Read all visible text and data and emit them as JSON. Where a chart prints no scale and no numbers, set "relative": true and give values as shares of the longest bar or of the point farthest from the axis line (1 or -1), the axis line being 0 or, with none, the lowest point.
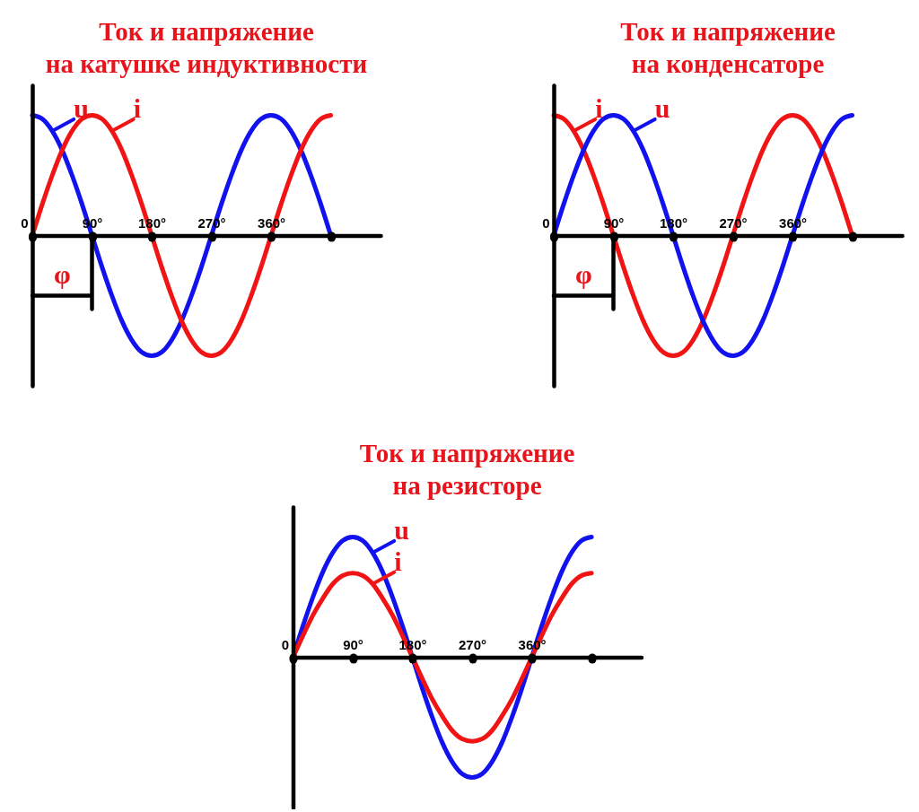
{
  "chart_data": [
    {
      "type": "line",
      "title": "Ток и напряжение\nна катушке индуктивности",
      "relative": true,
      "legend": "top left",
      "x": [
        0,
        15,
        30,
        45,
        60,
        75,
        90,
        105,
        120,
        135,
        150,
        165,
        180,
        195,
        210,
        225,
        240,
        255,
        270,
        285,
        300,
        315,
        330,
        345,
        360,
        375,
        390,
        405,
        420,
        435,
        450
      ],
      "series": [
        {
          "name": "u",
          "color": "#1212ee",
          "values": [
            1,
            0.97,
            0.87,
            0.71,
            0.5,
            0.26,
            0,
            -0.26,
            -0.5,
            -0.71,
            -0.87,
            -0.97,
            -1,
            -0.97,
            -0.87,
            -0.71,
            -0.5,
            -0.26,
            0,
            0.26,
            0.5,
            0.71,
            0.87,
            0.97,
            1,
            0.97,
            0.87,
            0.71,
            0.5,
            0.26,
            0
          ]
        },
        {
          "name": "i",
          "color": "#f01414",
          "values": [
            0,
            0.26,
            0.5,
            0.71,
            0.87,
            0.97,
            1,
            0.97,
            0.87,
            0.71,
            0.5,
            0.26,
            0,
            -0.26,
            -0.5,
            -0.71,
            -0.87,
            -0.97,
            -1,
            -0.97,
            -0.87,
            -0.71,
            -0.5,
            -0.26,
            0,
            0.26,
            0.5,
            0.71,
            0.87,
            0.97,
            1
          ]
        }
      ],
      "xlim": [
        0,
        525
      ],
      "xticks": [
        0,
        {
          "value": 90,
          "label": "90°"
        },
        {
          "value": 180,
          "label": "180°"
        },
        {
          "value": 270,
          "label": "270°"
        },
        {
          "value": 360,
          "label": "360°"
        },
        {
          "value": 450,
          "label": null
        }
      ],
      "annotations": [
        {
          "text": "φ",
          "x": 90,
          "y": 0
        }
      ]
    },
    {
      "type": "line",
      "title": "Ток и напряжение\nна конденсаторе",
      "relative": true,
      "legend": "top left",
      "x": [
        0,
        15,
        30,
        45,
        60,
        75,
        90,
        105,
        120,
        135,
        150,
        165,
        180,
        195,
        210,
        225,
        240,
        255,
        270,
        285,
        300,
        315,
        330,
        345,
        360,
        375,
        390,
        405,
        420,
        435,
        450
      ],
      "series": [
        {
          "name": "i",
          "color": "#f01414",
          "values": [
            1,
            0.97,
            0.87,
            0.71,
            0.5,
            0.26,
            0,
            -0.26,
            -0.5,
            -0.71,
            -0.87,
            -0.97,
            -1,
            -0.97,
            -0.87,
            -0.71,
            -0.5,
            -0.26,
            0,
            0.26,
            0.5,
            0.71,
            0.87,
            0.97,
            1,
            0.97,
            0.87,
            0.71,
            0.5,
            0.26,
            0
          ]
        },
        {
          "name": "u",
          "color": "#1212ee",
          "values": [
            0,
            0.26,
            0.5,
            0.71,
            0.87,
            0.97,
            1,
            0.97,
            0.87,
            0.71,
            0.5,
            0.26,
            0,
            -0.26,
            -0.5,
            -0.71,
            -0.87,
            -0.97,
            -1,
            -0.97,
            -0.87,
            -0.71,
            -0.5,
            -0.26,
            0,
            0.26,
            0.5,
            0.71,
            0.87,
            0.97,
            1
          ]
        }
      ],
      "xlim": [
        0,
        525
      ],
      "xticks": [
        0,
        {
          "value": 90,
          "label": "90°"
        },
        {
          "value": 180,
          "label": "180°"
        },
        {
          "value": 270,
          "label": "270°"
        },
        {
          "value": 360,
          "label": "360°"
        },
        {
          "value": 450,
          "label": null
        }
      ],
      "annotations": [
        {
          "text": "φ",
          "x": 90,
          "y": 0
        }
      ]
    },
    {
      "type": "line",
      "title": "Ток и напряжение\nна резисторе",
      "relative": true,
      "legend": "top left",
      "x": [
        0,
        15,
        30,
        45,
        60,
        75,
        90,
        105,
        120,
        135,
        150,
        165,
        180,
        195,
        210,
        225,
        240,
        255,
        270,
        285,
        300,
        315,
        330,
        345,
        360,
        375,
        390,
        405,
        420,
        435,
        450
      ],
      "series": [
        {
          "name": "u",
          "color": "#1212ee",
          "values": [
            0,
            0.26,
            0.5,
            0.71,
            0.87,
            0.97,
            1,
            0.97,
            0.87,
            0.71,
            0.5,
            0.26,
            0,
            -0.26,
            -0.5,
            -0.71,
            -0.87,
            -0.97,
            -1,
            -0.97,
            -0.87,
            -0.71,
            -0.5,
            -0.26,
            0,
            0.26,
            0.5,
            0.71,
            0.87,
            0.97,
            1
          ]
        },
        {
          "name": "i",
          "color": "#f01414",
          "values": [
            0,
            0.18,
            0.35,
            0.49,
            0.61,
            0.68,
            0.7,
            0.68,
            0.61,
            0.49,
            0.35,
            0.18,
            0,
            -0.18,
            -0.35,
            -0.49,
            -0.61,
            -0.68,
            -0.7,
            -0.68,
            -0.61,
            -0.49,
            -0.35,
            -0.18,
            0,
            0.18,
            0.35,
            0.49,
            0.61,
            0.68,
            0.7
          ]
        }
      ],
      "xlim": [
        0,
        525
      ],
      "xticks": [
        0,
        {
          "value": 90,
          "label": "90°"
        },
        {
          "value": 180,
          "label": "180°"
        },
        {
          "value": 270,
          "label": "270°"
        },
        {
          "value": 360,
          "label": "360°"
        },
        {
          "value": 450,
          "label": null
        }
      ]
    }
  ]
}
